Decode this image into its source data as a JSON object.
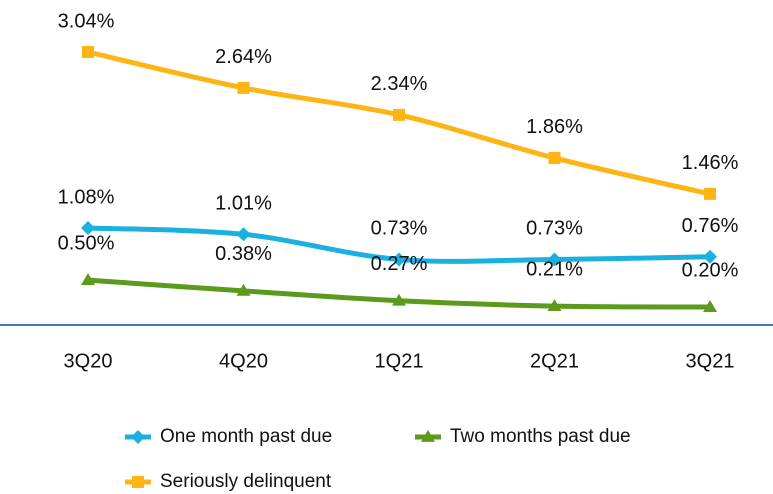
{
  "chart_data": {
    "type": "line",
    "categories": [
      "3Q20",
      "4Q20",
      "1Q21",
      "2Q21",
      "3Q21"
    ],
    "series": [
      {
        "name": "One month past due",
        "color": "#1ab0e0",
        "marker": "diamond",
        "values": [
          1.08,
          1.01,
          0.73,
          0.73,
          0.76
        ],
        "value_labels": [
          "1.08%",
          "1.01%",
          "0.73%",
          "0.73%",
          "0.76%"
        ]
      },
      {
        "name": "Two months past due",
        "color": "#5b9a1c",
        "marker": "triangle",
        "values": [
          0.5,
          0.38,
          0.27,
          0.21,
          0.2
        ],
        "value_labels": [
          "0.50%",
          "0.38%",
          "0.27%",
          "0.21%",
          "0.20%"
        ]
      },
      {
        "name": "Seriously delinquent",
        "color": "#fdb515",
        "marker": "square",
        "values": [
          3.04,
          2.64,
          2.34,
          1.86,
          1.46
        ],
        "value_labels": [
          "3.04%",
          "2.64%",
          "2.34%",
          "1.86%",
          "1.46%"
        ]
      }
    ]
  }
}
